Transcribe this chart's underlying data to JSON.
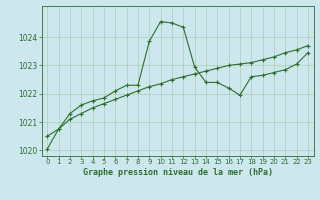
{
  "title": "Graphe pression niveau de la mer (hPa)",
  "bg_color": "#cce8ee",
  "line_color": "#2d6e2d",
  "grid_color": "#b0ccb0",
  "xlim": [
    -0.5,
    23.5
  ],
  "ylim": [
    1019.8,
    1025.1
  ],
  "yticks": [
    1020,
    1021,
    1022,
    1023,
    1024
  ],
  "xticks": [
    0,
    1,
    2,
    3,
    4,
    5,
    6,
    7,
    8,
    9,
    10,
    11,
    12,
    13,
    14,
    15,
    16,
    17,
    18,
    19,
    20,
    21,
    22,
    23
  ],
  "series1_x": [
    0,
    1,
    2,
    3,
    4,
    5,
    6,
    7,
    8,
    9,
    10,
    11,
    12,
    13,
    14,
    15,
    16,
    17,
    18,
    19,
    20,
    21,
    22,
    23
  ],
  "series1_y": [
    1020.05,
    1020.75,
    1021.3,
    1021.6,
    1021.75,
    1021.85,
    1022.1,
    1022.3,
    1022.3,
    1023.85,
    1024.55,
    1024.5,
    1024.35,
    1022.95,
    1022.4,
    1022.4,
    1022.2,
    1021.95,
    1022.6,
    1022.65,
    1022.75,
    1022.85,
    1023.05,
    1023.45
  ],
  "series2_x": [
    0,
    1,
    2,
    3,
    4,
    5,
    6,
    7,
    8,
    9,
    10,
    11,
    12,
    13,
    14,
    15,
    16,
    17,
    18,
    19,
    20,
    21,
    22,
    23
  ],
  "series2_y": [
    1020.5,
    1020.75,
    1021.1,
    1021.3,
    1021.5,
    1021.65,
    1021.8,
    1021.95,
    1022.1,
    1022.25,
    1022.35,
    1022.5,
    1022.6,
    1022.7,
    1022.8,
    1022.9,
    1023.0,
    1023.05,
    1023.1,
    1023.2,
    1023.3,
    1023.45,
    1023.55,
    1023.7
  ]
}
